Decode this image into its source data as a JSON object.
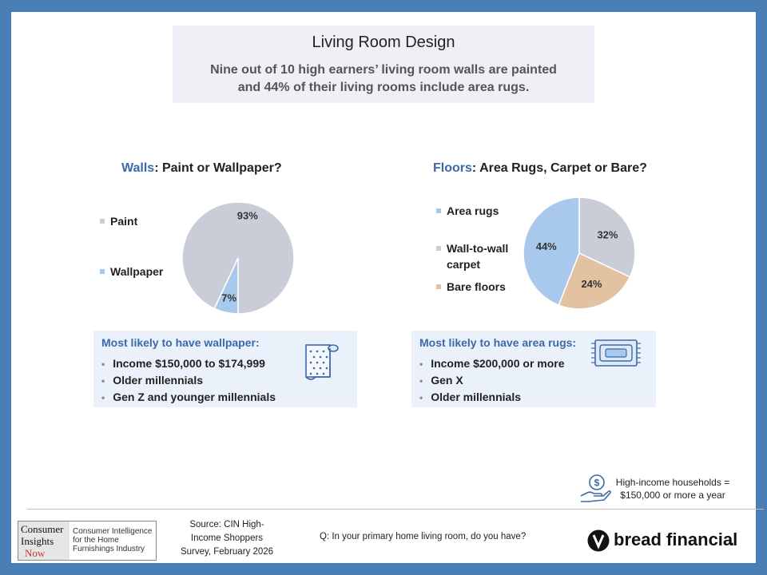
{
  "header": {
    "title": "Living Room Design",
    "subtitle_line1": "Nine out of 10 high earners’ living room walls are painted",
    "subtitle_line2": "and 44% of their living rooms include area rugs."
  },
  "colors": {
    "frame": "#4a7fb5",
    "paint": "#c8cdd7",
    "wallpaper": "#a9c9ec",
    "area_rugs": "#a9c9ec",
    "carpet": "#c8cdd7",
    "bare_floors": "#e2c2a0",
    "accent_blue": "#3b6aa8",
    "info_bg": "#eaf1fb"
  },
  "chart_data": [
    {
      "type": "pie",
      "title_highlight": "Walls",
      "title_rest": ": Paint or Wallpaper?",
      "slices": [
        {
          "label": "Paint",
          "value": 93,
          "value_label": "93%",
          "color": "#c8cdd7"
        },
        {
          "label": "Wallpaper",
          "value": 7,
          "value_label": "7%",
          "color": "#a9c9ec"
        }
      ],
      "legend": [
        "Paint",
        "Wallpaper"
      ],
      "legend_placement": "left"
    },
    {
      "type": "pie",
      "title_highlight": "Floors",
      "title_rest": ": Area Rugs, Carpet or Bare?",
      "slices": [
        {
          "label": "Area rugs",
          "value": 44,
          "value_label": "44%",
          "color": "#a9c9ec"
        },
        {
          "label": "Wall-to-wall carpet",
          "value": 32,
          "value_label": "32%",
          "color": "#c8cdd7"
        },
        {
          "label": "Bare floors",
          "value": 24,
          "value_label": "24%",
          "color": "#e2c2a0"
        }
      ],
      "legend": [
        "Area rugs",
        "Wall-to-wall",
        "carpet",
        "Bare floors"
      ],
      "legend_placement": "left"
    }
  ],
  "walls_box": {
    "title": "Most likely to have wallpaper:",
    "items": [
      "Income $150,000 to $174,999",
      "Older millennials",
      "Gen Z and younger millennials"
    ],
    "icon": "wallpaper-roll-icon"
  },
  "floors_box": {
    "title": "Most likely to have area rugs:",
    "items": [
      "Income $200,000 or more",
      "Gen X",
      "Older millennials"
    ],
    "icon": "rug-icon"
  },
  "note": {
    "icon": "money-hand-icon",
    "line1": "High-income households =",
    "line2": "$150,000 or more a year"
  },
  "footer": {
    "logo_lines": [
      "Consumer",
      "Insights",
      "Now"
    ],
    "logo_tagline": [
      "Consumer Intelligence",
      "for the Home",
      "Furnishings Industry"
    ],
    "source_lines": [
      "Source: CIN High-",
      "Income Shoppers",
      "Survey, February 2026"
    ],
    "question": "Q:  In your primary home living room, do you have?",
    "brand": "bread financial",
    "brand_mark": "."
  }
}
